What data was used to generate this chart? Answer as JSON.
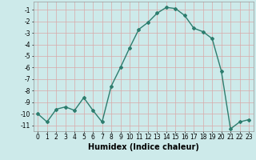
{
  "x": [
    0,
    1,
    2,
    3,
    4,
    5,
    6,
    7,
    8,
    9,
    10,
    11,
    12,
    13,
    14,
    15,
    16,
    17,
    18,
    19,
    20,
    21,
    22,
    23
  ],
  "y": [
    -10,
    -10.7,
    -9.6,
    -9.4,
    -9.7,
    -8.6,
    -9.7,
    -10.7,
    -7.6,
    -6.0,
    -4.3,
    -2.7,
    -2.1,
    -1.3,
    -0.8,
    -0.9,
    -1.5,
    -2.6,
    -2.9,
    -3.5,
    -6.3,
    -11.3,
    -10.7,
    -10.5
  ],
  "line_color": "#2d7d6e",
  "marker": "D",
  "markersize": 2.0,
  "linewidth": 1.0,
  "bg_color": "#cdeaea",
  "grid_color": "#d9a8a8",
  "xlabel": "Humidex (Indice chaleur)",
  "xlim": [
    -0.5,
    23.5
  ],
  "ylim": [
    -11.5,
    -0.3
  ],
  "yticks": [
    -1,
    -2,
    -3,
    -4,
    -5,
    -6,
    -7,
    -8,
    -9,
    -10,
    -11
  ],
  "xticks": [
    0,
    1,
    2,
    3,
    4,
    5,
    6,
    7,
    8,
    9,
    10,
    11,
    12,
    13,
    14,
    15,
    16,
    17,
    18,
    19,
    20,
    21,
    22,
    23
  ],
  "tick_fontsize": 5.5,
  "xlabel_fontsize": 7.0
}
